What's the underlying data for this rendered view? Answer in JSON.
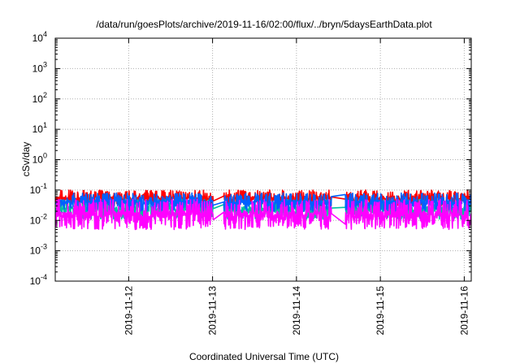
{
  "chart_data": {
    "type": "line",
    "title": "/data/run/goesPlots/archive/2019-11-16/02:00/flux/../bryn/5daysEarthData.plot",
    "xlabel": "Coordinated Universal Time (UTC)",
    "ylabel": "cSv/day",
    "yscale": "log",
    "ylim": [
      0.0001,
      10000
    ],
    "xlim": [
      "2019-11-11T03:00",
      "2019-11-16T02:00"
    ],
    "yticks": [
      {
        "exp": -4,
        "base": "10",
        "sup": "-4"
      },
      {
        "exp": -3,
        "base": "10",
        "sup": "-3"
      },
      {
        "exp": -2,
        "base": "10",
        "sup": "-2"
      },
      {
        "exp": -1,
        "base": "10",
        "sup": "-1"
      },
      {
        "exp": 0,
        "base": "10",
        "sup": "0"
      },
      {
        "exp": 1,
        "base": "10",
        "sup": "1"
      },
      {
        "exp": 2,
        "base": "10",
        "sup": "2"
      },
      {
        "exp": 3,
        "base": "10",
        "sup": "3"
      },
      {
        "exp": 4,
        "base": "10",
        "sup": "4"
      }
    ],
    "xticks": [
      {
        "value": "2019-11-12T00:00",
        "label": "2019-11-12"
      },
      {
        "value": "2019-11-13T00:00",
        "label": "2019-11-13"
      },
      {
        "value": "2019-11-14T00:00",
        "label": "2019-11-14"
      },
      {
        "value": "2019-11-15T00:00",
        "label": "2019-11-15"
      },
      {
        "value": "2019-11-16T00:00",
        "label": "2019-11-16"
      }
    ],
    "grid": true,
    "gaps": [
      {
        "start": "2019-11-13T00:15",
        "end": "2019-11-13T03:10"
      },
      {
        "start": "2019-11-14T10:00",
        "end": "2019-11-14T14:00"
      }
    ],
    "series": [
      {
        "color": "#ff0000",
        "min": 0.03,
        "max": 0.1,
        "seed": 11
      },
      {
        "color": "#00c0a0",
        "min": 0.011,
        "max": 0.05,
        "seed": 23
      },
      {
        "color": "#0060ff",
        "min": 0.02,
        "max": 0.08,
        "seed": 37
      },
      {
        "color": "#ff00ff",
        "min": 0.005,
        "max": 0.05,
        "seed": 53
      }
    ]
  }
}
